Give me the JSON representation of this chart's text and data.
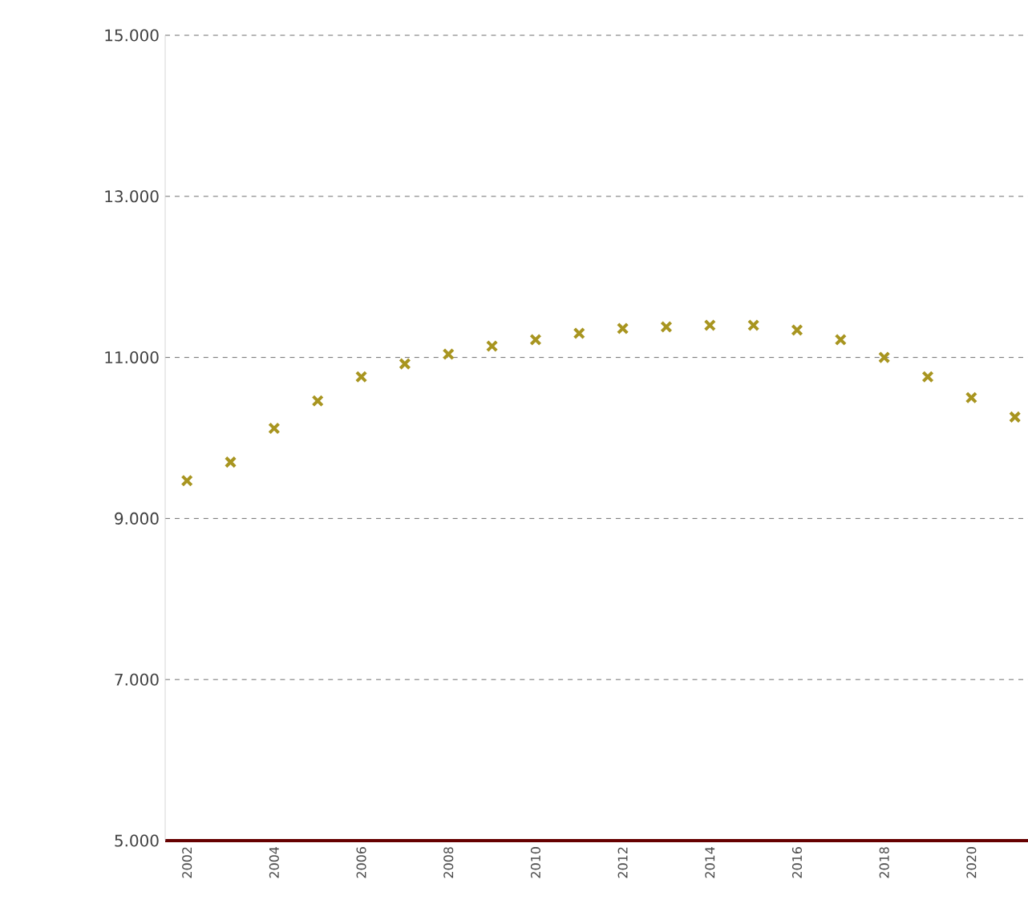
{
  "chart_data": {
    "type": "scatter",
    "marker": "cross",
    "grid": "y",
    "x": [
      2002,
      2003,
      2004,
      2005,
      2006,
      2007,
      2008,
      2009,
      2010,
      2011,
      2012,
      2013,
      2014,
      2015,
      2016,
      2017,
      2018,
      2019,
      2020,
      2021
    ],
    "series": [
      {
        "color": "#a89520",
        "values": [
          9470,
          9700,
          10120,
          10460,
          10760,
          10920,
          11040,
          11140,
          11220,
          11300,
          11360,
          11380,
          11400,
          11400,
          11340,
          11220,
          11000,
          10760,
          10500,
          10260
        ]
      }
    ],
    "xlim": [
      2001.5,
      2021.3
    ],
    "xticks": [
      2002,
      2004,
      2006,
      2008,
      2010,
      2012,
      2014,
      2016,
      2018,
      2020
    ],
    "ylim": [
      5000,
      15000
    ],
    "yticks": [
      {
        "value": 5000,
        "label": "5.000"
      },
      {
        "value": 7000,
        "label": "7.000"
      },
      {
        "value": 9000,
        "label": "9.000"
      },
      {
        "value": 11000,
        "label": "11.000"
      },
      {
        "value": 13000,
        "label": "13.000"
      },
      {
        "value": 15000,
        "label": "15.000"
      }
    ]
  }
}
